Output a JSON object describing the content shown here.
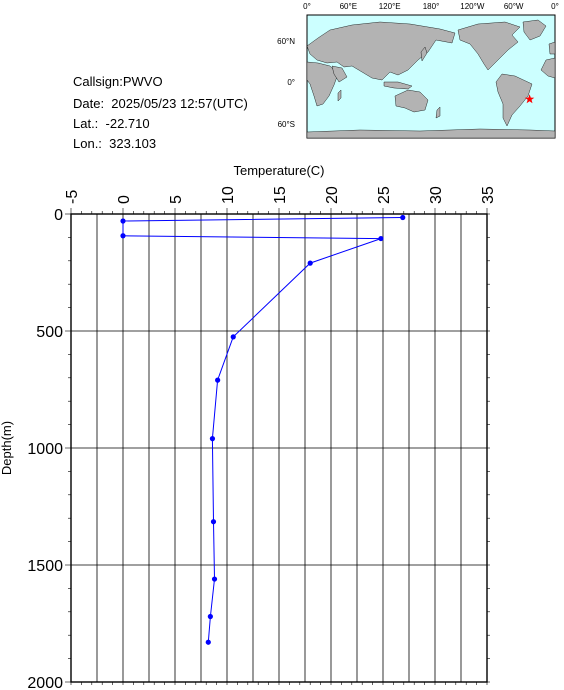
{
  "station": {
    "callsign": "Callsign:PWVO",
    "date": "Date:  2025/05/23 12:57(UTC)",
    "lat": "Lat.:  -22.710",
    "lon": "Lon.:  323.103"
  },
  "map": {
    "lon_labels": [
      "0°",
      "60°E",
      "120°E",
      "180°",
      "120°W",
      "60°W",
      "0°"
    ],
    "lat_labels": [
      "60°N",
      "0°",
      "60°S"
    ],
    "ocean_color": "#ccffff",
    "land_color": "#b3b3b3",
    "marker": {
      "shape": "star",
      "color": "#ff0000",
      "lat": -22.71,
      "lon": 323.103
    }
  },
  "chart_data": {
    "type": "line",
    "xlabel": "Temperature(C)",
    "ylabel": "Depth(m)",
    "xlim": [
      -5,
      35
    ],
    "ylim": [
      2000,
      0
    ],
    "x_ticks": [
      -5,
      0,
      5,
      10,
      15,
      20,
      25,
      30,
      35
    ],
    "y_ticks": [
      0,
      500,
      1000,
      1500,
      2000
    ],
    "x_axis_position": "top",
    "grid": true,
    "line_color": "#0000ff",
    "series": [
      {
        "temperature": [
          26.9,
          0.0,
          0.0,
          24.8,
          18.0,
          10.6,
          9.1,
          8.6,
          8.7,
          8.8,
          8.4,
          8.2
        ],
        "depth": [
          15,
          30,
          93,
          105,
          210,
          525,
          710,
          960,
          1315,
          1560,
          1720,
          1830
        ]
      }
    ]
  }
}
